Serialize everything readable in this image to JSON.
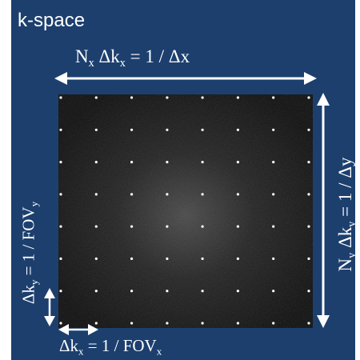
{
  "title": "k-space",
  "top_label": {
    "prefix": "N",
    "sub1": "x",
    "mid": " Δk",
    "sub2": "x",
    "suffix": " = 1 / Δx"
  },
  "right_label": {
    "prefix": "N",
    "sub1": "y",
    "mid": " Δk",
    "sub2": "y",
    "suffix": " = 1 / Δy"
  },
  "left_label": {
    "prefix": "Δk",
    "sub1": "y",
    "mid": " = 1 / FOV",
    "sub2": "y",
    "suffix": ""
  },
  "bottom_label": {
    "prefix": "Δk",
    "sub1": "x",
    "mid": " = 1 / FOV",
    "sub2": "x",
    "suffix": ""
  },
  "grid": {
    "columns": 8,
    "rows": 8
  },
  "colors": {
    "background": "#1c3f6e",
    "text": "#ffffff",
    "kspace_center": "#4a4a4a",
    "kspace_edge": "#121212",
    "sample_dot": "#ffffff"
  }
}
